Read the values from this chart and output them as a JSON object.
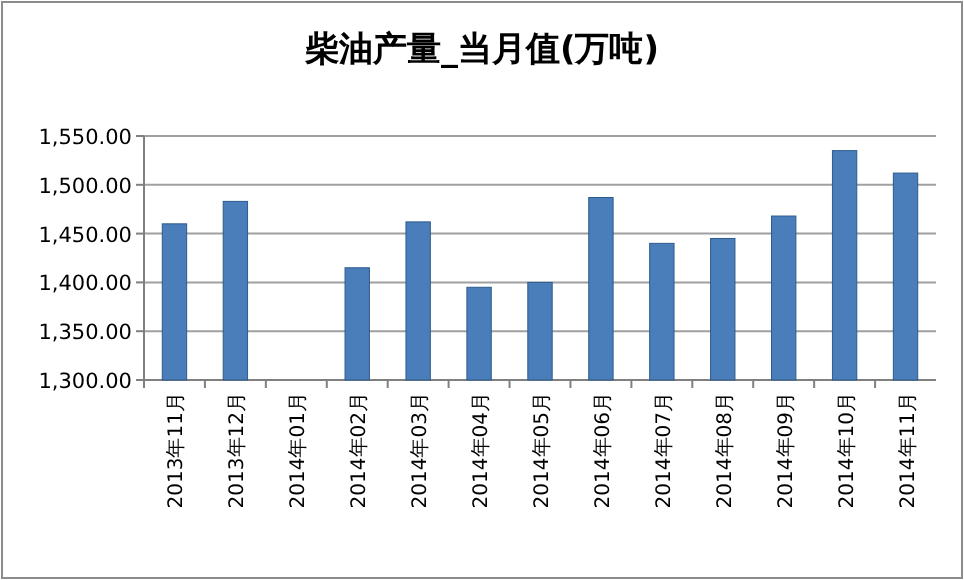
{
  "chart_data": {
    "type": "bar",
    "title": "柴油产量_当月值(万吨)",
    "categories": [
      "2013年11月",
      "2013年12月",
      "2014年01月",
      "2014年02月",
      "2014年03月",
      "2014年04月",
      "2014年05月",
      "2014年06月",
      "2014年07月",
      "2014年08月",
      "2014年09月",
      "2014年10月",
      "2014年11月"
    ],
    "series": [
      {
        "color": "#4a7ebb",
        "values": [
          1460,
          1483,
          null,
          1415,
          1462,
          1395,
          1400,
          1487,
          1440,
          1445,
          1468,
          1535,
          1512
        ]
      }
    ],
    "ylim": [
      1300,
      1550
    ],
    "yticks": [
      {
        "value": 1300,
        "label": "1,300.00"
      },
      {
        "value": 1350,
        "label": "1,350.00"
      },
      {
        "value": 1400,
        "label": "1,400.00"
      },
      {
        "value": 1450,
        "label": "1,450.00"
      },
      {
        "value": 1500,
        "label": "1,500.00"
      },
      {
        "value": 1550,
        "label": "1,550.00"
      }
    ],
    "grid": "y"
  }
}
